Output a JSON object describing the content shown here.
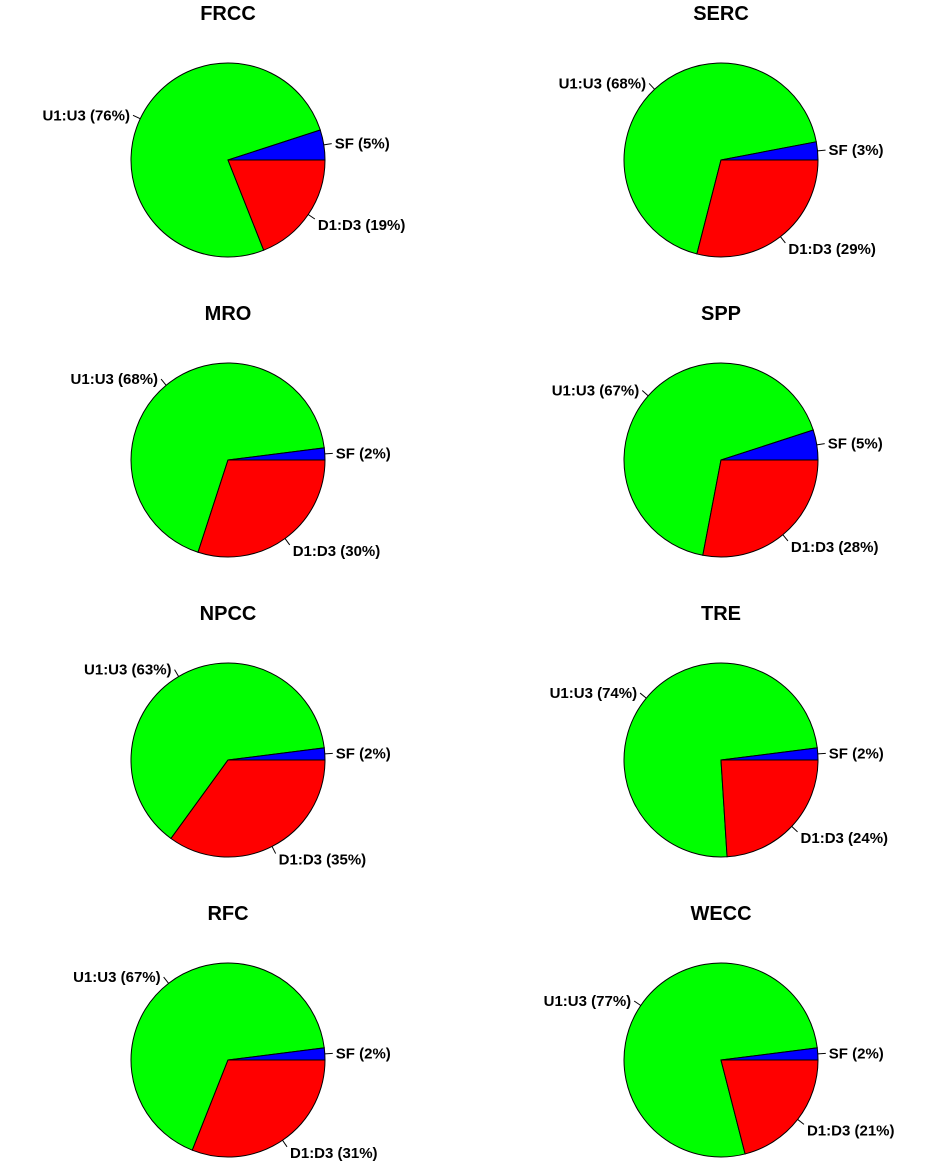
{
  "colors": {
    "U1:U3": "#00ff00",
    "D1:D3": "#ff0000",
    "SF": "#0000ff"
  },
  "chart_data": [
    {
      "type": "pie",
      "title": "FRCC",
      "slices": [
        {
          "label": "U1:U3",
          "value": 76,
          "text": "U1:U3 (76%)"
        },
        {
          "label": "D1:D3",
          "value": 19,
          "text": "D1:D3 (19%)"
        },
        {
          "label": "SF",
          "value": 5,
          "text": "SF (5%)"
        }
      ]
    },
    {
      "type": "pie",
      "title": "SERC",
      "slices": [
        {
          "label": "U1:U3",
          "value": 68,
          "text": "U1:U3 (68%)"
        },
        {
          "label": "D1:D3",
          "value": 29,
          "text": "D1:D3 (29%)"
        },
        {
          "label": "SF",
          "value": 3,
          "text": "SF (3%)"
        }
      ]
    },
    {
      "type": "pie",
      "title": "MRO",
      "slices": [
        {
          "label": "U1:U3",
          "value": 68,
          "text": "U1:U3 (68%)"
        },
        {
          "label": "D1:D3",
          "value": 30,
          "text": "D1:D3 (30%)"
        },
        {
          "label": "SF",
          "value": 2,
          "text": "SF (2%)"
        }
      ]
    },
    {
      "type": "pie",
      "title": "SPP",
      "slices": [
        {
          "label": "U1:U3",
          "value": 67,
          "text": "U1:U3 (67%)"
        },
        {
          "label": "D1:D3",
          "value": 28,
          "text": "D1:D3 (28%)"
        },
        {
          "label": "SF",
          "value": 5,
          "text": "SF (5%)"
        }
      ]
    },
    {
      "type": "pie",
      "title": "NPCC",
      "slices": [
        {
          "label": "U1:U3",
          "value": 63,
          "text": "U1:U3 (63%)"
        },
        {
          "label": "D1:D3",
          "value": 35,
          "text": "D1:D3 (35%)"
        },
        {
          "label": "SF",
          "value": 2,
          "text": "SF (2%)"
        }
      ]
    },
    {
      "type": "pie",
      "title": "TRE",
      "slices": [
        {
          "label": "U1:U3",
          "value": 74,
          "text": "U1:U3 (74%)"
        },
        {
          "label": "D1:D3",
          "value": 24,
          "text": "D1:D3 (24%)"
        },
        {
          "label": "SF",
          "value": 2,
          "text": "SF (2%)"
        }
      ]
    },
    {
      "type": "pie",
      "title": "RFC",
      "slices": [
        {
          "label": "U1:U3",
          "value": 67,
          "text": "U1:U3 (67%)"
        },
        {
          "label": "D1:D3",
          "value": 31,
          "text": "D1:D3 (31%)"
        },
        {
          "label": "SF",
          "value": 2,
          "text": "SF (2%)"
        }
      ]
    },
    {
      "type": "pie",
      "title": "WECC",
      "slices": [
        {
          "label": "U1:U3",
          "value": 77,
          "text": "U1:U3 (77%)"
        },
        {
          "label": "D1:D3",
          "value": 21,
          "text": "D1:D3 (21%)"
        },
        {
          "label": "SF",
          "value": 2,
          "text": "SF (2%)"
        }
      ]
    }
  ]
}
